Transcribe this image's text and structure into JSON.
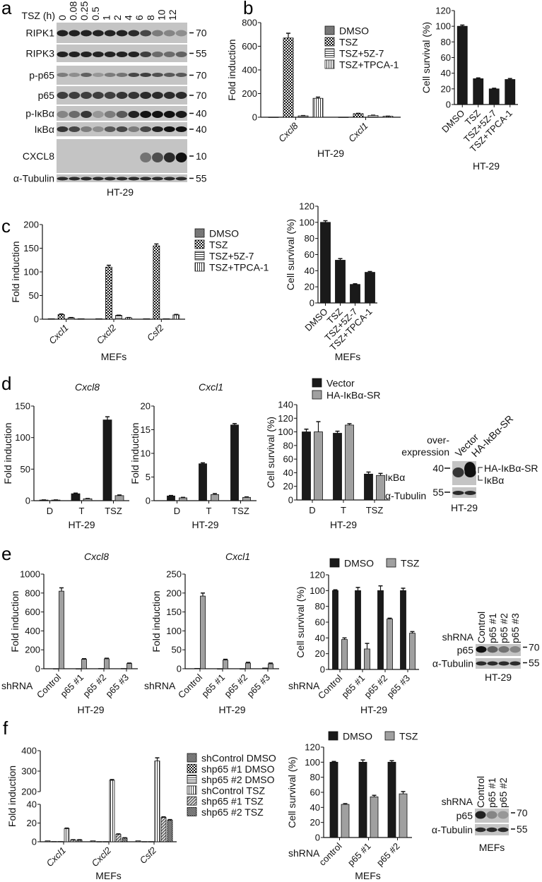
{
  "panel_letters": [
    "a",
    "b",
    "c",
    "d",
    "e",
    "f"
  ],
  "blot_a": {
    "treatment_label": "TSZ (h)",
    "timepoints": [
      "0",
      "0.08",
      "0.25",
      "0.5",
      "1",
      "2",
      "4",
      "6",
      "8",
      "10",
      "12"
    ],
    "rows": [
      {
        "label": "RIPK1",
        "mw": "70"
      },
      {
        "label": "RIPK3",
        "mw": "55"
      },
      {
        "label": "p-p65",
        "mw": "70"
      },
      {
        "label": "p65",
        "mw": "70"
      },
      {
        "label": "p-IκBα",
        "mw": "40"
      },
      {
        "label": "IκBα",
        "mw": "40"
      },
      {
        "label": "CXCL8",
        "mw": "10"
      },
      {
        "label": "α-Tubulin",
        "mw": "55"
      }
    ],
    "cell_line": "HT-29"
  },
  "blot_d": {
    "header": [
      "over-",
      "expression"
    ],
    "lanes": [
      "Vector",
      "HA-IκBα-SR"
    ],
    "rows": [
      {
        "label": "IκBα",
        "mw": "40"
      },
      {
        "label": "α-Tubulin",
        "mw": "55"
      }
    ],
    "band_labels": [
      "HA-IκBα-SR",
      "IκBα"
    ],
    "cell_line": "HT-29"
  },
  "blot_e": {
    "prefix": "shRNA",
    "lanes": [
      "Control",
      "p65 #1",
      "p65 #2",
      "p65 #3"
    ],
    "rows": [
      {
        "label": "p65",
        "mw": "70"
      },
      {
        "label": "α-Tubulin",
        "mw": "55"
      }
    ],
    "cell_line": "HT-29"
  },
  "blot_f": {
    "prefix": "shRNA",
    "lanes": [
      "Control",
      "p65 #1",
      "p65 #2"
    ],
    "rows": [
      {
        "label": "p65",
        "mw": "70"
      },
      {
        "label": "α-Tubulin",
        "mw": "55"
      }
    ],
    "cell_line": "MEFs"
  },
  "chart_data": [
    {
      "panel": "b",
      "type": "bar",
      "title": "",
      "ylabel": "Fold induction",
      "xlabel": "HT-29",
      "italic_categories": true,
      "categories": [
        "Cxcl8",
        "Cxcl1"
      ],
      "ylim": [
        0,
        800
      ],
      "yticks": [
        0,
        200,
        400,
        600,
        800
      ],
      "legend": "right",
      "series": [
        {
          "name": "DMSO",
          "fill": "pattern-dmso",
          "values": [
            1,
            1
          ],
          "error": [
            0,
            0
          ]
        },
        {
          "name": "TSZ",
          "fill": "pattern-checker",
          "values": [
            670,
            30
          ],
          "error": [
            40,
            3
          ]
        },
        {
          "name": "TSZ+5Z-7",
          "fill": "pattern-hlines",
          "values": [
            12,
            15
          ],
          "error": [
            2,
            2
          ]
        },
        {
          "name": "TSZ+TPCA-1",
          "fill": "pattern-vlines",
          "values": [
            160,
            8
          ],
          "error": [
            10,
            1
          ]
        }
      ]
    },
    {
      "panel": "b",
      "type": "bar",
      "title": "",
      "ylabel": "Cell survival (%)",
      "xlabel": "HT-29",
      "categories": [
        "DMSO",
        "TSZ",
        "TSZ+5Z-7",
        "TSZ+TPCA-1"
      ],
      "ylim": [
        0,
        120
      ],
      "yticks": [
        0,
        20,
        40,
        60,
        80,
        100,
        120
      ],
      "series": [
        {
          "fill": "#1a1a1a",
          "values": [
            100,
            33,
            20,
            32
          ],
          "error": [
            1.5,
            1,
            0.8,
            1.2
          ]
        }
      ]
    },
    {
      "panel": "c",
      "type": "bar",
      "title": "",
      "ylabel": "Fold induction",
      "xlabel": "MEFs",
      "italic_categories": true,
      "categories": [
        "Cxcl1",
        "Cxcl2",
        "Csf2"
      ],
      "ylim": [
        0,
        200
      ],
      "yticks": [
        0,
        50,
        100,
        150,
        200
      ],
      "legend": "right",
      "series": [
        {
          "name": "DMSO",
          "fill": "pattern-dmso",
          "values": [
            1,
            1,
            1
          ],
          "error": [
            0,
            0,
            0
          ]
        },
        {
          "name": "TSZ",
          "fill": "pattern-checker",
          "values": [
            10,
            110,
            155
          ],
          "error": [
            1,
            4,
            4
          ]
        },
        {
          "name": "TSZ+5Z-7",
          "fill": "pattern-hlines",
          "values": [
            3,
            8,
            1
          ],
          "error": [
            0.5,
            0.5,
            0
          ]
        },
        {
          "name": "TSZ+TPCA-1",
          "fill": "pattern-vlines",
          "values": [
            1,
            3,
            9
          ],
          "error": [
            0,
            0.5,
            1
          ]
        }
      ]
    },
    {
      "panel": "c",
      "type": "bar",
      "title": "",
      "ylabel": "Cell survival (%)",
      "xlabel": "MEFs",
      "categories": [
        "DMSO",
        "TSZ",
        "TSZ+5Z-7",
        "TSZ+TPCA-1"
      ],
      "ylim": [
        0,
        120
      ],
      "yticks": [
        0,
        20,
        40,
        60,
        80,
        100,
        120
      ],
      "series": [
        {
          "fill": "#1a1a1a",
          "values": [
            100,
            53,
            23,
            38
          ],
          "error": [
            2,
            2,
            0.8,
            1
          ]
        }
      ]
    },
    {
      "panel": "d",
      "type": "bar",
      "title": "Cxcl8",
      "ylabel": "Fold induction",
      "xlabel": "HT-29",
      "categories": [
        "D",
        "T",
        "TSZ"
      ],
      "ylim": [
        0,
        150
      ],
      "yticks": [
        0,
        50,
        100,
        150
      ],
      "series": [
        {
          "fill": "#1a1a1a",
          "values": [
            1,
            11,
            128
          ],
          "error": [
            0.2,
            1,
            5
          ]
        },
        {
          "fill": "#a0a0a0",
          "values": [
            1,
            3,
            8
          ],
          "error": [
            0.2,
            0.5,
            1
          ]
        }
      ]
    },
    {
      "panel": "d",
      "type": "bar",
      "title": "Cxcl1",
      "ylabel": "Fold induction",
      "xlabel": "HT-29",
      "categories": [
        "D",
        "T",
        "TSZ"
      ],
      "ylim": [
        0,
        20
      ],
      "yticks": [
        0,
        5,
        10,
        15,
        20
      ],
      "series": [
        {
          "fill": "#1a1a1a",
          "values": [
            1,
            7.8,
            16
          ],
          "error": [
            0.1,
            0.2,
            0.3
          ]
        },
        {
          "fill": "#a0a0a0",
          "values": [
            0.6,
            1.3,
            0.7
          ],
          "error": [
            0.1,
            0.2,
            0.1
          ]
        }
      ]
    },
    {
      "panel": "d",
      "type": "bar",
      "title": "",
      "ylabel": "Cell survival (%)",
      "xlabel": "HT-29",
      "categories": [
        "D",
        "T",
        "TSZ"
      ],
      "ylim": [
        0,
        140
      ],
      "yticks": [
        0,
        20,
        40,
        60,
        80,
        100,
        120,
        140
      ],
      "legend": "top",
      "series": [
        {
          "name": "Vector",
          "fill": "#1a1a1a",
          "values": [
            100,
            98,
            38
          ],
          "error": [
            4,
            3,
            3
          ]
        },
        {
          "name": "HA-IκBα-SR",
          "fill": "#a0a0a0",
          "values": [
            100,
            110,
            36
          ],
          "error": [
            15,
            2,
            3
          ]
        }
      ]
    },
    {
      "panel": "e",
      "type": "bar",
      "title": "Cxcl8",
      "ylabel": "Fold induction",
      "xlabel": "HT-29",
      "x_prefix": "shRNA",
      "categories": [
        "Control",
        "p65 #1",
        "p65 #2",
        "p65 #3"
      ],
      "ylim": [
        0,
        1000
      ],
      "yticks": [
        0,
        200,
        400,
        600,
        800,
        1000
      ],
      "series": [
        {
          "fill": "#1a1a1a",
          "values": [
            1,
            1,
            3,
            3
          ],
          "error": [
            0,
            0,
            0,
            0
          ]
        },
        {
          "fill": "#a0a0a0",
          "values": [
            820,
            100,
            105,
            55
          ],
          "error": [
            35,
            6,
            6,
            5
          ]
        }
      ]
    },
    {
      "panel": "e",
      "type": "bar",
      "title": "Cxcl1",
      "ylabel": "Fold induction",
      "xlabel": "HT-29",
      "x_prefix": "shRNA",
      "categories": [
        "Control",
        "p65 #1",
        "p65 #2",
        "p65 #3"
      ],
      "ylim": [
        0,
        250
      ],
      "yticks": [
        0,
        50,
        100,
        150,
        200,
        250
      ],
      "series": [
        {
          "fill": "#1a1a1a",
          "values": [
            1,
            0,
            0,
            2
          ],
          "error": [
            0,
            0,
            0,
            0
          ]
        },
        {
          "fill": "#a0a0a0",
          "values": [
            192,
            23,
            15,
            13
          ],
          "error": [
            8,
            2,
            2,
            2
          ]
        }
      ]
    },
    {
      "panel": "e",
      "type": "bar",
      "title": "",
      "ylabel": "Cell survival (%)",
      "xlabel": "HT-29",
      "x_prefix": "shRNA",
      "categories": [
        "Control",
        "p65 #1",
        "p65 #2",
        "p65 #3"
      ],
      "ylim": [
        0,
        120
      ],
      "yticks": [
        0,
        20,
        40,
        60,
        80,
        100,
        120
      ],
      "legend": "top",
      "series": [
        {
          "name": "DMSO",
          "fill": "#1a1a1a",
          "values": [
            100,
            100,
            100,
            100
          ],
          "error": [
            1,
            4,
            6,
            3
          ]
        },
        {
          "name": "TSZ",
          "fill": "#a0a0a0",
          "values": [
            38,
            26,
            64,
            46
          ],
          "error": [
            2,
            7,
            1,
            2
          ]
        }
      ]
    },
    {
      "panel": "f",
      "type": "bar",
      "title": "",
      "ylabel": "Fold induction",
      "xlabel": "MEFs",
      "italic_categories": true,
      "categories": [
        "Cxcl1",
        "Cxcl2",
        "Csf2"
      ],
      "ylim": [
        0,
        400
      ],
      "axis_break": [
        40,
        200
      ],
      "yticks": [
        0,
        20,
        40,
        200,
        300,
        400
      ],
      "legend": "right",
      "series": [
        {
          "name": "shControl DMSO",
          "fill": "pattern-dmso",
          "values": [
            1,
            1,
            1
          ],
          "error": [
            0,
            0,
            0
          ]
        },
        {
          "name": "shp65 #1 DMSO",
          "fill": "pattern-checker",
          "values": [
            0.3,
            0.2,
            0.2
          ],
          "error": [
            0,
            0,
            0
          ]
        },
        {
          "name": "shp65 #2 DMSO",
          "fill": "pattern-hlines",
          "values": [
            0.3,
            0.2,
            0.2
          ],
          "error": [
            0,
            0,
            0
          ]
        },
        {
          "name": "shControl TSZ",
          "fill": "pattern-vlines",
          "values": [
            14,
            255,
            350
          ],
          "error": [
            0.6,
            4,
            15
          ]
        },
        {
          "name": "shp65 #1 TSZ",
          "fill": "pattern-diag",
          "values": [
            2,
            8,
            26
          ],
          "error": [
            0.2,
            0.4,
            0.6
          ]
        },
        {
          "name": "shp65 #2 TSZ",
          "fill": "pattern-diag2",
          "values": [
            2,
            4,
            23
          ],
          "error": [
            0.2,
            0.3,
            0.7
          ]
        }
      ]
    },
    {
      "panel": "f",
      "type": "bar",
      "title": "",
      "ylabel": "Cell survival (%)",
      "xlabel": "MEFs",
      "x_prefix": "shRNA",
      "categories": [
        "control",
        "p65 #1",
        "p65 #2"
      ],
      "ylim": [
        0,
        120
      ],
      "yticks": [
        0,
        20,
        40,
        60,
        80,
        100,
        120
      ],
      "legend": "top",
      "series": [
        {
          "name": "DMSO",
          "fill": "#1a1a1a",
          "values": [
            100,
            100,
            100
          ],
          "error": [
            1,
            3,
            2
          ]
        },
        {
          "name": "TSZ",
          "fill": "#a0a0a0",
          "values": [
            44,
            54,
            58
          ],
          "error": [
            1,
            2,
            3
          ]
        }
      ]
    }
  ]
}
